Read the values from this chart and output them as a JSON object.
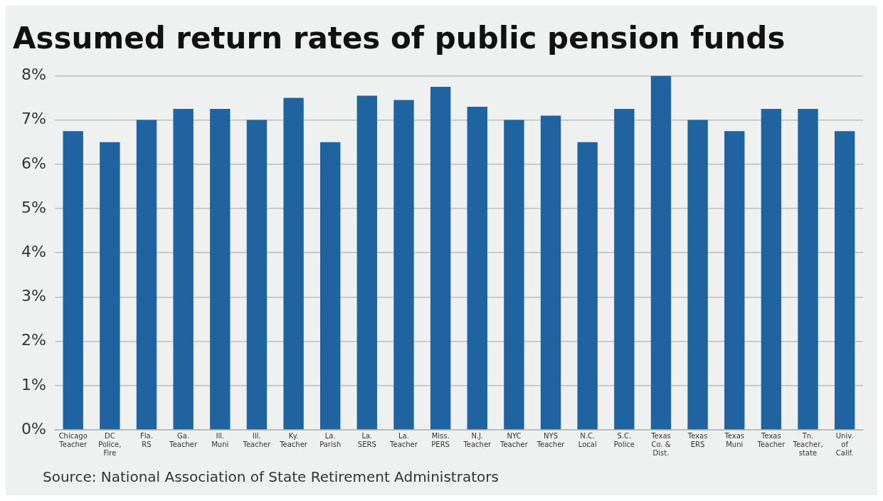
{
  "chart_data": {
    "type": "bar",
    "title": "Assumed return rates of public pension funds",
    "categories": [
      "Chicago\nTeacher",
      "DC\nPolice,\nFire",
      "Fla.\nRS",
      "Ga.\nTeacher",
      "Ill.\nMuni",
      "Ill.\nTeacher",
      "Ky.\nTeacher",
      "La.\nParish",
      "La.\nSERS",
      "La.\nTeacher",
      "Miss.\nPERS",
      "N.J.\nTeacher",
      "NYC\nTeacher",
      "NYS\nTeacher",
      "N.C.\nLocal",
      "S.C.\nPolice",
      "Texas\nCo. &\nDist.",
      "Texas\nERS",
      "Texas\nMuni",
      "Texas\nTeacher",
      "Tn.\nTeacher,\nstate",
      "Univ.\nof\nCalif."
    ],
    "values": [
      6.75,
      6.5,
      7.0,
      7.25,
      7.25,
      7.0,
      7.5,
      6.5,
      7.55,
      7.45,
      7.75,
      7.3,
      7.0,
      7.1,
      6.5,
      7.25,
      8.0,
      7.0,
      6.75,
      7.25,
      7.25,
      6.75
    ],
    "color": "#1f64a0",
    "ylim": [
      0,
      8
    ],
    "yticks": [
      {
        "value": 0,
        "label": "0%"
      },
      {
        "value": 1,
        "label": "1%"
      },
      {
        "value": 2,
        "label": "2%"
      },
      {
        "value": 3,
        "label": "3%"
      },
      {
        "value": 4,
        "label": "4%"
      },
      {
        "value": 5,
        "label": "5%"
      },
      {
        "value": 6,
        "label": "6%"
      },
      {
        "value": 7,
        "label": "7%"
      },
      {
        "value": 8,
        "label": "8%"
      }
    ],
    "grid": "y",
    "legend": false,
    "annotations": [
      "Source: National Association of State Retirement Administrators"
    ]
  }
}
